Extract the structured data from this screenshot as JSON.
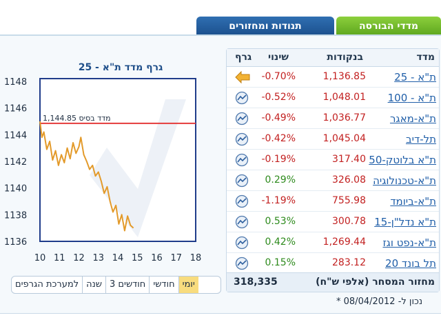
{
  "tabs": [
    {
      "label": "מדדי הבורסה",
      "active": true
    },
    {
      "label": "תנודות ומחזורים",
      "active": false
    }
  ],
  "chart": {
    "title": "גרף מדד ת\"א - 25"
  },
  "chart_data": {
    "type": "line",
    "xlabel": "",
    "ylabel": "",
    "xlim": [
      10,
      18
    ],
    "ylim": [
      1136,
      1148
    ],
    "x_ticks": [
      "10",
      "11",
      "12",
      "13",
      "14",
      "15",
      "16",
      "17",
      "18"
    ],
    "y_ticks": [
      "1136",
      "1138",
      "1140",
      "1142",
      "1144",
      "1146",
      "1148"
    ],
    "base_line": {
      "label": "מדד בסיס",
      "value_label": "1,144.85",
      "value": 1144.85
    },
    "series": [
      {
        "x": [
          10.0,
          10.1,
          10.2,
          10.35,
          10.5,
          10.65,
          10.8,
          10.95,
          11.1,
          11.25,
          11.4,
          11.55,
          11.7,
          11.85,
          12.0,
          12.1,
          12.25,
          12.4,
          12.55,
          12.7,
          12.85,
          13.0,
          13.15,
          13.3,
          13.45,
          13.6,
          13.75,
          13.9,
          14.05,
          14.2,
          14.35,
          14.5,
          14.65,
          14.8
        ],
        "y": [
          1145.0,
          1143.8,
          1144.2,
          1142.9,
          1143.5,
          1142.1,
          1142.8,
          1141.7,
          1142.5,
          1141.9,
          1143.0,
          1142.2,
          1143.4,
          1142.6,
          1143.1,
          1143.8,
          1142.5,
          1142.0,
          1141.4,
          1141.7,
          1140.9,
          1141.2,
          1140.5,
          1139.6,
          1140.1,
          1139.0,
          1138.2,
          1138.7,
          1137.3,
          1138.0,
          1136.8,
          1137.9,
          1137.2,
          1137.0
        ]
      }
    ],
    "grid": false
  },
  "table": {
    "headers": {
      "name": "מדד",
      "points": "בנקודות",
      "change": "שינוי",
      "graph": "גרף"
    },
    "rows": [
      {
        "name": "ת\"א - 25",
        "value": "1,136.85",
        "change": "-0.70%",
        "dir": "neg",
        "icon": "arrow-left-icon"
      },
      {
        "name": "ת\"א - 100",
        "value": "1,048.01",
        "change": "-0.52%",
        "dir": "neg",
        "icon": "chart-icon"
      },
      {
        "name": "ת\"א-מאגר",
        "value": "1,036.77",
        "change": "-0.49%",
        "dir": "neg",
        "icon": "chart-icon"
      },
      {
        "name": "תל-דיב",
        "value": "1,045.04",
        "change": "-0.42%",
        "dir": "neg",
        "icon": "chart-icon"
      },
      {
        "name": "ת\"א בלוטק-50",
        "value": "317.40",
        "change": "-0.19%",
        "dir": "neg",
        "icon": "chart-icon"
      },
      {
        "name": "ת\"א-טכנולוגיה",
        "value": "326.08",
        "change": "0.29%",
        "dir": "pos",
        "icon": "chart-icon"
      },
      {
        "name": "ת\"א-ביומד",
        "value": "755.98",
        "change": "-1.19%",
        "dir": "neg",
        "icon": "chart-icon"
      },
      {
        "name": "ת\"א נדל\"ן-15",
        "value": "300.78",
        "change": "0.53%",
        "dir": "pos",
        "icon": "chart-icon"
      },
      {
        "name": "ת\"א-נפט וגז",
        "value": "1,269.44",
        "change": "0.42%",
        "dir": "pos",
        "icon": "chart-icon"
      },
      {
        "name": "תל בונד 20",
        "value": "283.12",
        "change": "0.15%",
        "dir": "pos",
        "icon": "chart-icon"
      }
    ],
    "footer": {
      "label": "מחזור המסחר (אלפי ש\"ח)",
      "value": "318,335"
    }
  },
  "period_buttons": [
    "יומי",
    "חודשי",
    "3 חודשים",
    "שנה",
    "למערכת הגרפים"
  ],
  "selected_period": "יומי",
  "updated": "* נכון ל- 08/04/2012",
  "colors": {
    "line": "#e39a2a",
    "base_line": "#e53b3b",
    "tab_active": "#6bb52a",
    "tab_inactive": "#24609f",
    "negative": "#c21f1f",
    "positive": "#2d8a1c"
  }
}
